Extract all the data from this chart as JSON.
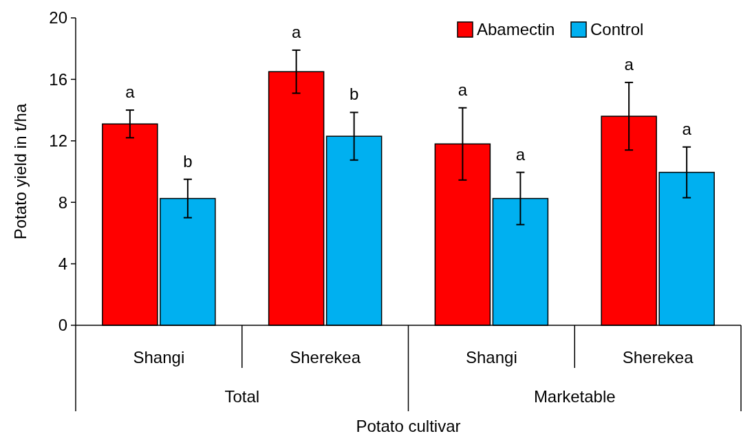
{
  "chart_data": {
    "type": "bar",
    "xlabel": "Potato cultivar",
    "ylabel": "Potato yield in t/ha",
    "categories": [
      "Shangi",
      "Sherekea",
      "Shangi",
      "Sherekea"
    ],
    "annotations": [
      "Total",
      "Marketable"
    ],
    "series": [
      {
        "name": "Abamectin",
        "color": "#ff0000",
        "values": [
          13.1,
          16.5,
          11.8,
          13.6
        ],
        "errors": [
          0.9,
          1.4,
          2.35,
          2.2
        ],
        "value_labels": [
          "a",
          "a",
          "a",
          "a"
        ]
      },
      {
        "name": "Control",
        "color": "#00b0f0",
        "values": [
          8.25,
          12.3,
          8.25,
          9.95
        ],
        "errors": [
          1.25,
          1.55,
          1.7,
          1.65
        ],
        "value_labels": [
          "b",
          "b",
          "a",
          "a"
        ]
      }
    ],
    "ylim": [
      0,
      20
    ],
    "yticks": [
      0,
      4,
      8,
      12,
      16,
      20
    ],
    "grid": false,
    "legend": "top right"
  }
}
